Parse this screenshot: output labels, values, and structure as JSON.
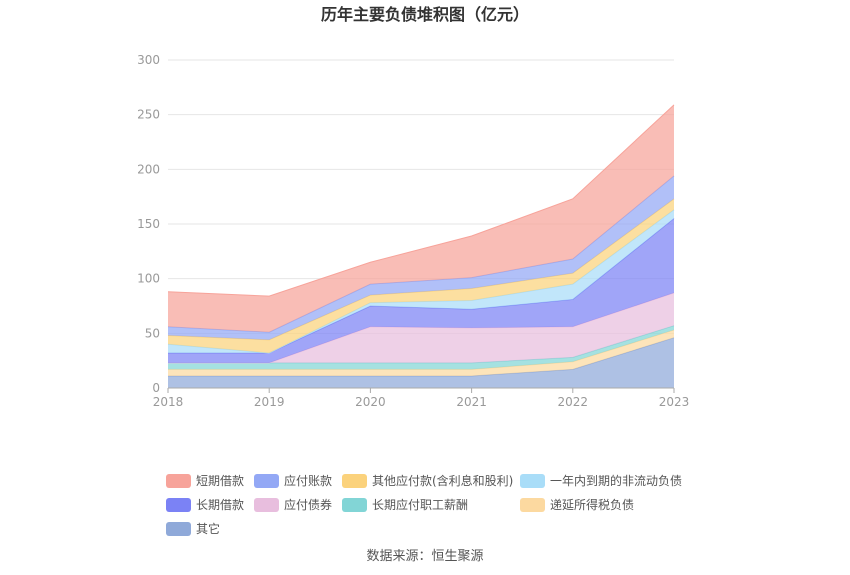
{
  "chart_data": {
    "type": "area",
    "stacked": true,
    "title": "历年主要负债堆积图（亿元）",
    "xlabel": "",
    "ylabel": "",
    "x": [
      "2018",
      "2019",
      "2020",
      "2021",
      "2022",
      "2023"
    ],
    "ylim": [
      0,
      300
    ],
    "yticks": [
      "0",
      "50",
      "100",
      "150",
      "200",
      "250",
      "300"
    ],
    "grid": true,
    "legend_position": "bottom",
    "series": [
      {
        "name": "其它",
        "color": "#8fa9d9",
        "values": [
          11,
          11,
          11,
          11,
          17,
          46
        ]
      },
      {
        "name": "递延所得税负债",
        "color": "#fcd9a0",
        "values": [
          6,
          6,
          6,
          6,
          7,
          7
        ]
      },
      {
        "name": "长期应付职工薪酬",
        "color": "#82d5d6",
        "values": [
          6,
          6,
          6,
          6,
          4,
          4
        ]
      },
      {
        "name": "应付债券",
        "color": "#e8bede",
        "values": [
          0,
          0,
          33,
          32,
          28,
          30
        ]
      },
      {
        "name": "长期借款",
        "color": "#7b82f5",
        "values": [
          9,
          9,
          19,
          17,
          25,
          68
        ]
      },
      {
        "name": "一年内到期的非流动负债",
        "color": "#a9ddf8",
        "values": [
          8,
          0,
          3,
          8,
          14,
          8
        ]
      },
      {
        "name": "其他应付款(含利息和股利)",
        "color": "#fbd27c",
        "values": [
          8,
          12,
          7,
          11,
          10,
          10
        ]
      },
      {
        "name": "应付账款",
        "color": "#93a8f5",
        "values": [
          8,
          7,
          10,
          10,
          13,
          21
        ]
      },
      {
        "name": "短期借款",
        "color": "#f7a39a",
        "values": [
          32,
          33,
          20,
          38,
          55,
          65
        ]
      }
    ],
    "legend_order": [
      "短期借款",
      "应付账款",
      "其他应付款(含利息和股利)",
      "一年内到期的非流动负债",
      "长期借款",
      "应付债券",
      "长期应付职工薪酬",
      "递延所得税负债",
      "其它"
    ]
  },
  "source_text": "数据来源：恒生聚源"
}
